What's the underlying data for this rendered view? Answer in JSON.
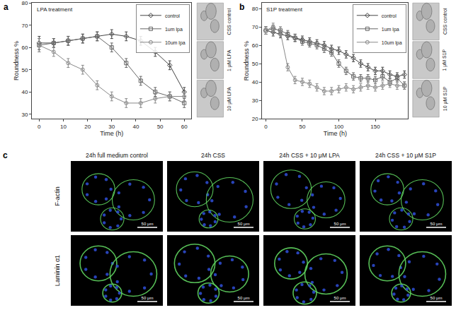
{
  "chart_data": [
    {
      "label": "a",
      "type": "line",
      "title": "LPA treatment",
      "x_label": "Time (h)",
      "y_label": "Roundness %",
      "x": [
        0,
        6,
        12,
        18,
        24,
        30,
        36,
        42,
        48,
        54,
        60
      ],
      "xlim": [
        -3,
        63
      ],
      "xticks": [
        0,
        10,
        20,
        30,
        40,
        50,
        60
      ],
      "ylim": [
        28,
        80
      ],
      "yticks": [
        30,
        40,
        50,
        60,
        70,
        80
      ],
      "grid": false,
      "legend": "upper right",
      "series": [
        {
          "name": "control",
          "color": "#444444",
          "marker": "diamond",
          "line_style": "solid",
          "values": [
            62,
            62,
            63,
            64,
            65,
            66,
            65,
            63,
            58,
            52,
            40
          ],
          "errors": [
            3,
            2,
            2,
            2,
            2,
            2,
            2,
            2,
            2,
            2,
            2
          ]
        },
        {
          "name": "1um lpa",
          "color": "#666666",
          "marker": "square",
          "line_style": "solid",
          "values": [
            61,
            62,
            63,
            64,
            65,
            60,
            53,
            45,
            40,
            38,
            35
          ],
          "errors": [
            3,
            2,
            2,
            2,
            2,
            2,
            2,
            2,
            2,
            2,
            2
          ]
        },
        {
          "name": "10um lpa",
          "color": "#888888",
          "marker": "circle",
          "line_style": "solid",
          "values": [
            61,
            58,
            53,
            50,
            43,
            38,
            35,
            35,
            37,
            38,
            38
          ],
          "errors": [
            3,
            2,
            2,
            2,
            2,
            2,
            2,
            2,
            2,
            2,
            2
          ]
        }
      ],
      "image_labels": [
        "CSS control",
        "1 μM LPA",
        "10 μM LPA"
      ]
    },
    {
      "label": "b",
      "type": "line",
      "title": "S1P treatment",
      "x_label": "Time (h)",
      "y_label": "Roundness %",
      "x": [
        0,
        10,
        20,
        30,
        40,
        50,
        60,
        70,
        80,
        90,
        100,
        110,
        120,
        130,
        140,
        150,
        160,
        170,
        180,
        190
      ],
      "xlim": [
        -5,
        195
      ],
      "xticks": [
        0,
        50,
        100,
        150
      ],
      "ylim": [
        20,
        83
      ],
      "yticks": [
        20,
        30,
        40,
        50,
        60,
        70,
        80
      ],
      "grid": false,
      "legend": "upper right",
      "series": [
        {
          "name": "control",
          "color": "#444444",
          "marker": "diamond",
          "line_style": "solid",
          "values": [
            68,
            67,
            66,
            65,
            64,
            63,
            62,
            61,
            60,
            58,
            57,
            55,
            53,
            50,
            48,
            46,
            46,
            44,
            43,
            44
          ],
          "errors": [
            2,
            2,
            2,
            2,
            2,
            2,
            2,
            2,
            2,
            2,
            2,
            2,
            2,
            2,
            2,
            2,
            2,
            2,
            2,
            2
          ]
        },
        {
          "name": "1um lpa",
          "color": "#666666",
          "marker": "square",
          "line_style": "solid",
          "values": [
            68,
            69,
            68,
            66,
            64,
            62,
            61,
            60,
            58,
            56,
            50,
            46,
            43,
            42,
            42,
            41,
            43,
            40,
            42,
            38
          ],
          "errors": [
            2,
            2,
            2,
            2,
            2,
            2,
            2,
            2,
            2,
            2,
            2,
            2,
            2,
            2,
            2,
            2,
            2,
            2,
            2,
            2
          ]
        },
        {
          "name": "10um lpa",
          "color": "#888888",
          "marker": "circle",
          "line_style": "solid",
          "values": [
            68,
            70,
            67,
            48,
            41,
            40,
            39,
            37,
            35,
            35,
            36,
            37,
            36,
            37,
            38,
            37,
            38,
            39,
            38,
            38
          ],
          "errors": [
            2,
            2,
            2,
            2,
            2,
            2,
            2,
            2,
            2,
            2,
            2,
            2,
            2,
            2,
            2,
            2,
            2,
            2,
            2,
            2
          ]
        }
      ],
      "image_labels": [
        "CSS control",
        "1 μM S1P",
        "10 μM S1P"
      ]
    }
  ],
  "panel_c": {
    "label": "c",
    "columns": [
      "24h full medium control",
      "24h CSS",
      "24h CSS + 10 μM LPA",
      "24h CSS + 10 μM S1P"
    ],
    "rows": [
      "F-actin",
      "Laminin α1"
    ],
    "scale_bar": "50 μm"
  }
}
